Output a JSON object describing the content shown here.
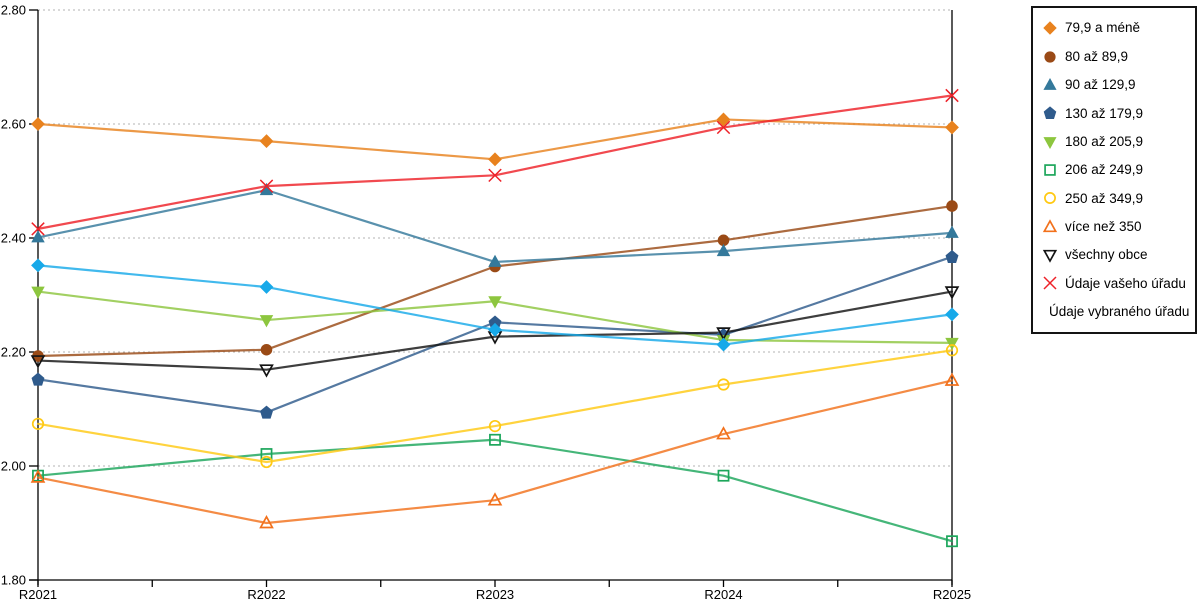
{
  "chart_data": {
    "type": "line",
    "title": "",
    "xlabel": "",
    "ylabel": "",
    "categories": [
      "R2021",
      "R2022",
      "R2023",
      "R2024",
      "R2025"
    ],
    "y_axis": {
      "min": 1.8,
      "max": 2.8,
      "tick_step": 0.2,
      "tick_labels": [
        "1.80",
        "2.00",
        "2.20",
        "2.40",
        "2.60",
        "2.80"
      ]
    },
    "grid": "horizontal dotted gridlines at each 0.20 step",
    "legend_position": "right",
    "colors": {
      "gridline": "#b3b3b3",
      "axis": "#000000",
      "background": "#ffffff"
    },
    "series": [
      {
        "name": "79,9 a méně",
        "marker": "diamond",
        "marker_style": "solid",
        "color": "#E8821E",
        "values": [
          2.6,
          2.57,
          2.538,
          2.608,
          2.594
        ]
      },
      {
        "name": "80 až 89,9",
        "marker": "circle",
        "marker_style": "solid",
        "color": "#9A4A16",
        "values": [
          2.193,
          2.204,
          2.35,
          2.396,
          2.456
        ]
      },
      {
        "name": "90 až 129,9",
        "marker": "triangle-up",
        "marker_style": "solid",
        "color": "#34799B",
        "values": [
          2.401,
          2.484,
          2.358,
          2.377,
          2.409
        ]
      },
      {
        "name": "130 až 179,9",
        "marker": "pentagon",
        "marker_style": "solid",
        "color": "#2F5B8C",
        "values": [
          2.152,
          2.094,
          2.252,
          2.23,
          2.367
        ]
      },
      {
        "name": "180 až 205,9",
        "marker": "triangle-down",
        "marker_style": "solid",
        "color": "#8DC63F",
        "values": [
          2.306,
          2.256,
          2.289,
          2.221,
          2.216
        ]
      },
      {
        "name": "206 až 249,9",
        "marker": "square",
        "marker_style": "open",
        "color": "#1CA65B",
        "values": [
          1.983,
          2.021,
          2.046,
          1.983,
          1.868
        ]
      },
      {
        "name": "250 až 349,9",
        "marker": "circle",
        "marker_style": "open",
        "color": "#FFC913",
        "values": [
          2.074,
          2.007,
          2.07,
          2.143,
          2.203
        ]
      },
      {
        "name": "více než 350",
        "marker": "triangle-up",
        "marker_style": "open",
        "color": "#F2711C",
        "values": [
          1.98,
          1.9,
          1.94,
          2.056,
          2.15
        ]
      },
      {
        "name": "všechny obce",
        "marker": "triangle-down",
        "marker_style": "open",
        "color": "#141414",
        "values": [
          2.185,
          2.169,
          2.227,
          2.234,
          2.306
        ]
      },
      {
        "name": "Údaje vašeho úřadu",
        "marker": "x",
        "marker_style": "stroke",
        "color": "#EE2128",
        "values": [
          2.416,
          2.491,
          2.51,
          2.594,
          2.65
        ]
      },
      {
        "name": "Údaje vybraného úřadu",
        "marker": "diamond",
        "marker_style": "solid",
        "color": "#17A9E9",
        "values": [
          2.352,
          2.314,
          2.239,
          2.213,
          2.266
        ]
      }
    ]
  }
}
